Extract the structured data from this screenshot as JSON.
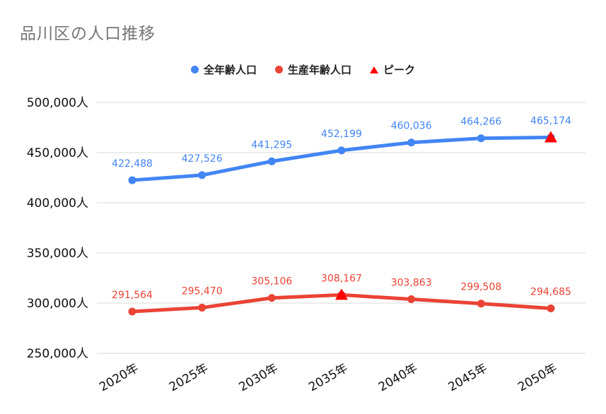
{
  "chart_data": {
    "type": "line",
    "title": "品川区の人口推移",
    "categories": [
      "2020年",
      "2025年",
      "2030年",
      "2035年",
      "2040年",
      "2045年",
      "2050年"
    ],
    "series": [
      {
        "name": "全年齢人口",
        "color": "#4285f4",
        "values": [
          422488,
          427526,
          441295,
          452199,
          460036,
          464266,
          465174
        ],
        "labels": [
          "422,488",
          "427,526",
          "441,295",
          "452,199",
          "460,036",
          "464,266",
          "465,174"
        ]
      },
      {
        "name": "生産年齢人口",
        "color": "#ea4335",
        "values": [
          291564,
          295470,
          305106,
          308167,
          303863,
          299508,
          294685
        ],
        "labels": [
          "291,564",
          "295,470",
          "305,106",
          "308,167",
          "303,863",
          "299,508",
          "294,685"
        ]
      }
    ],
    "peaks": {
      "name": "ピーク",
      "color": "#ff0000",
      "points": [
        {
          "category": "2050年",
          "value": 465174
        },
        {
          "category": "2035年",
          "value": 308167
        }
      ]
    },
    "ylim": [
      250000,
      500000
    ],
    "yticks": [
      250000,
      300000,
      350000,
      400000,
      450000,
      500000
    ],
    "ytick_labels": [
      "250,000人",
      "300,000人",
      "350,000人",
      "400,000人",
      "450,000人",
      "500,000人"
    ],
    "legend_position": "top-center",
    "grid": true
  }
}
